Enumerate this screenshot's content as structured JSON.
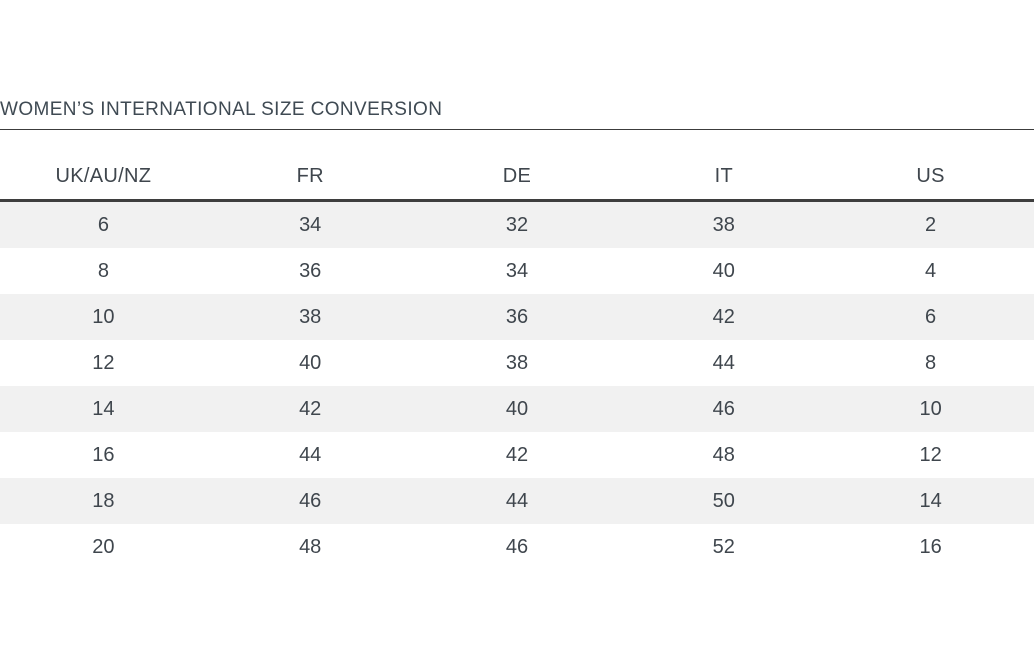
{
  "page": {
    "title": "WOMEN’S INTERNATIONAL SIZE CONVERSION"
  },
  "table": {
    "columns": [
      "UK/AU/NZ",
      "FR",
      "DE",
      "IT",
      "US"
    ],
    "rows": [
      [
        "6",
        "34",
        "32",
        "38",
        "2"
      ],
      [
        "8",
        "36",
        "34",
        "40",
        "4"
      ],
      [
        "10",
        "38",
        "36",
        "42",
        "6"
      ],
      [
        "12",
        "40",
        "38",
        "44",
        "8"
      ],
      [
        "14",
        "42",
        "40",
        "46",
        "10"
      ],
      [
        "16",
        "44",
        "42",
        "48",
        "12"
      ],
      [
        "18",
        "46",
        "44",
        "50",
        "14"
      ],
      [
        "20",
        "48",
        "46",
        "52",
        "16"
      ]
    ]
  },
  "colors": {
    "background": "#ffffff",
    "title_text": "#3f4a53",
    "cell_text": "#3f464d",
    "rule_thin": "#3c3c3c",
    "rule_thick": "#3e3e3e",
    "row_stripe": "#f1f1f1"
  }
}
